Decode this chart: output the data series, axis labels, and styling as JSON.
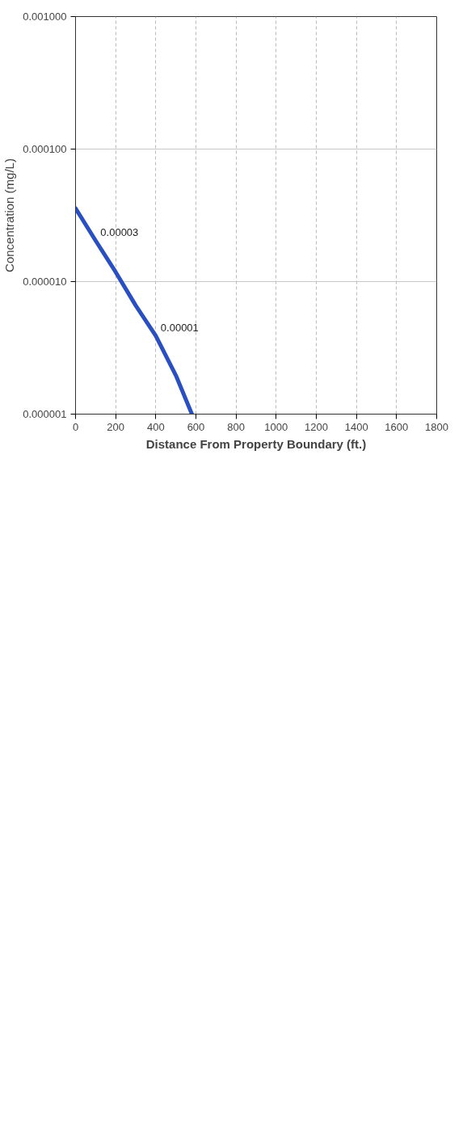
{
  "chart_data": {
    "type": "line",
    "xlabel": "Distance From Property Boundary (ft.)",
    "ylabel": "Concentration (mg/L)",
    "x": [
      0,
      100,
      200,
      300,
      400,
      500,
      580
    ],
    "series": [
      {
        "color": "#2a4fc0",
        "values": [
          3.57e-05,
          2.04e-05,
          1.18e-05,
          6.6e-06,
          3.9e-06,
          1.96e-06,
          1e-06
        ]
      }
    ],
    "xlim": [
      0,
      1800
    ],
    "xticks": [
      0,
      200,
      400,
      600,
      800,
      1000,
      1200,
      1400,
      1600,
      1800
    ],
    "ylim": [
      1e-06,
      0.001
    ],
    "yticks": [
      {
        "value": 1e-06,
        "label": "0.000001"
      },
      {
        "value": 1e-05,
        "label": "0.000010"
      },
      {
        "value": 0.0001,
        "label": "0.000100"
      },
      {
        "value": 0.001,
        "label": "0.001000"
      }
    ],
    "log": true,
    "grid": true,
    "line_style": "solid",
    "marker": "none",
    "annotations": [
      {
        "text": "0.00003",
        "x": 100,
        "y": 2.04e-05
      },
      {
        "text": "0.00001",
        "x": 400,
        "y": 3.9e-06
      }
    ]
  }
}
